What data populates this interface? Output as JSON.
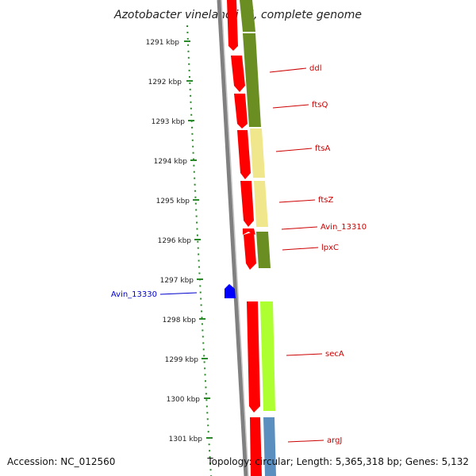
{
  "title": "Azotobacter vinelandii DJ, complete genome",
  "footer": {
    "accession": "Accession: NC_012560",
    "topology": "Topology: circular; Length: 5,365,318 bp; Genes: 5,132"
  },
  "colors": {
    "background": "#ffffff",
    "backbone": "#808080",
    "ruler": "#2a8a2a",
    "red_gene": "#ff0000",
    "olive": "#6b8e23",
    "pale_yellow": "#f0e68c",
    "lime": "#adff2f",
    "steel_blue": "#5b8fc0",
    "blue": "#0000ff",
    "label_red": "#cc0000",
    "label_blue": "#0000cc"
  },
  "ruler_ticks": [
    "1291 kbp",
    "1292 kbp",
    "1293 kbp",
    "1294 kbp",
    "1295 kbp",
    "1296 kbp",
    "1297 kbp",
    "1298 kbp",
    "1299 kbp",
    "1300 kbp",
    "1301 kbp"
  ],
  "gene_labels": {
    "ddl": "ddl",
    "ftsQ": "ftsQ",
    "ftsA": "ftsA",
    "ftsZ": "ftsZ",
    "avin13310": "Avin_13310",
    "lpxC": "lpxC",
    "avin13330": "Avin_13330",
    "secA": "secA",
    "argJ": "argJ"
  }
}
